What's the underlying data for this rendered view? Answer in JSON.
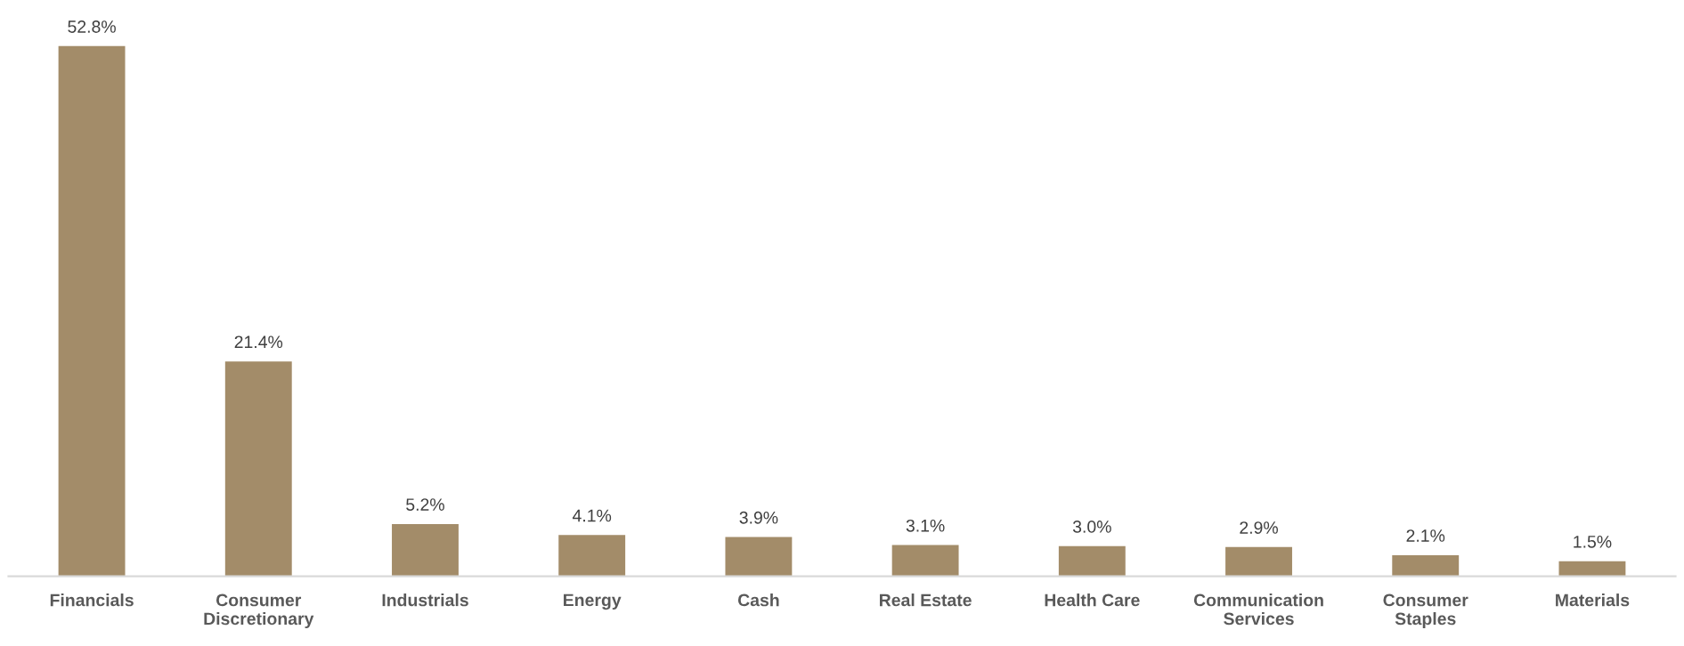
{
  "chart_data": {
    "type": "bar",
    "categories": [
      "Financials",
      "Consumer\nDiscretionary",
      "Industrials",
      "Energy",
      "Cash",
      "Real Estate",
      "Health Care",
      "Communication\nServices",
      "Consumer\nStaples",
      "Materials"
    ],
    "values": [
      52.8,
      21.4,
      5.2,
      4.1,
      3.9,
      3.1,
      3.0,
      2.9,
      2.1,
      1.5
    ],
    "value_labels": [
      "52.8%",
      "21.4%",
      "5.2%",
      "4.1%",
      "3.9%",
      "3.1%",
      "3.0%",
      "2.9%",
      "2.1%",
      "1.5%"
    ],
    "color": "#a38c69",
    "grid": false,
    "legend": false,
    "tick_labels": "x"
  }
}
